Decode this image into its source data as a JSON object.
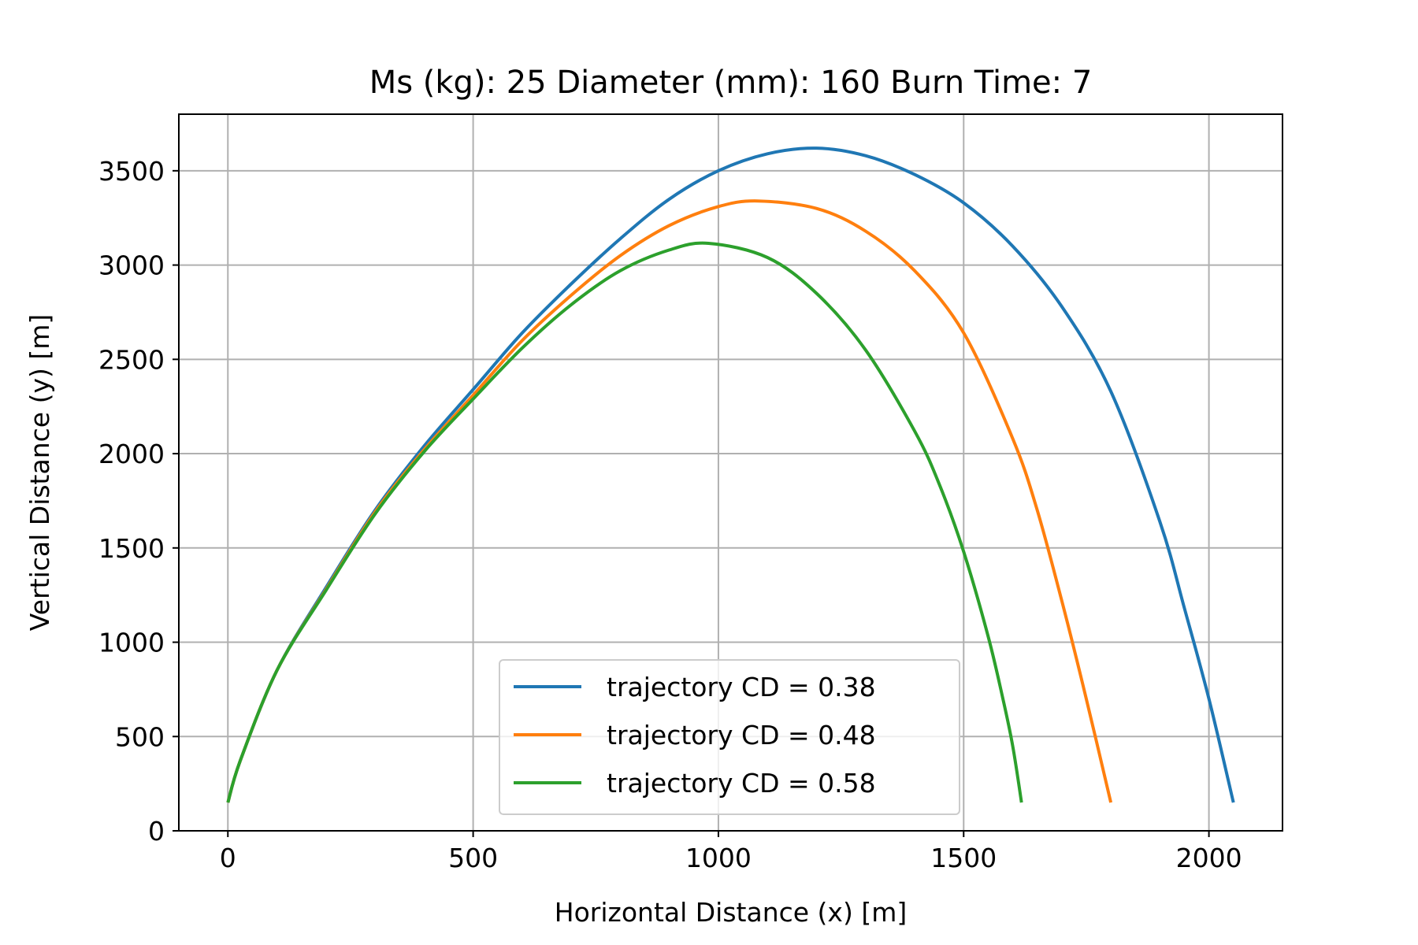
{
  "chart_data": {
    "type": "line",
    "title": "Ms (kg): 25 Diameter (mm): 160 Burn Time: 7",
    "xlabel": "Horizontal Distance (x) [m]",
    "ylabel": "Vertical Distance (y) [m]",
    "xlim": [
      -100,
      2150
    ],
    "ylim": [
      0,
      3800
    ],
    "xticks": [
      0,
      500,
      1000,
      1500,
      2000
    ],
    "yticks": [
      0,
      500,
      1000,
      1500,
      2000,
      2500,
      3000,
      3500
    ],
    "grid": true,
    "legend_position": "lower-center",
    "series": [
      {
        "name": "trajectory CD = 0.38",
        "color": "#1f77b4",
        "x": [
          0,
          25,
          100,
          200,
          300,
          400,
          500,
          600,
          700,
          800,
          900,
          1000,
          1100,
          1200,
          1300,
          1400,
          1500,
          1600,
          1700,
          1800,
          1900,
          1950,
          2000,
          2050
        ],
        "y": [
          150,
          370,
          850,
          1290,
          1700,
          2040,
          2340,
          2640,
          2900,
          3140,
          3350,
          3500,
          3590,
          3620,
          3580,
          3480,
          3330,
          3100,
          2780,
          2330,
          1640,
          1180,
          700,
          150
        ]
      },
      {
        "name": "trajectory CD = 0.48",
        "color": "#ff7f0e",
        "x": [
          0,
          25,
          100,
          200,
          300,
          400,
          500,
          600,
          700,
          800,
          900,
          1000,
          1080,
          1200,
          1300,
          1400,
          1500,
          1600,
          1650,
          1700,
          1750,
          1800
        ],
        "y": [
          150,
          370,
          850,
          1280,
          1690,
          2020,
          2310,
          2600,
          2840,
          3050,
          3210,
          3310,
          3340,
          3300,
          3180,
          2970,
          2640,
          2080,
          1700,
          1220,
          700,
          150
        ]
      },
      {
        "name": "trajectory CD = 0.58",
        "color": "#2ca02c",
        "x": [
          0,
          25,
          100,
          200,
          300,
          400,
          500,
          600,
          700,
          800,
          900,
          980,
          1100,
          1200,
          1300,
          1400,
          1450,
          1500,
          1550,
          1580,
          1600,
          1618
        ],
        "y": [
          150,
          370,
          850,
          1275,
          1680,
          2010,
          2290,
          2560,
          2790,
          2970,
          3080,
          3115,
          3040,
          2850,
          2550,
          2120,
          1840,
          1480,
          1030,
          700,
          450,
          150
        ]
      }
    ]
  }
}
